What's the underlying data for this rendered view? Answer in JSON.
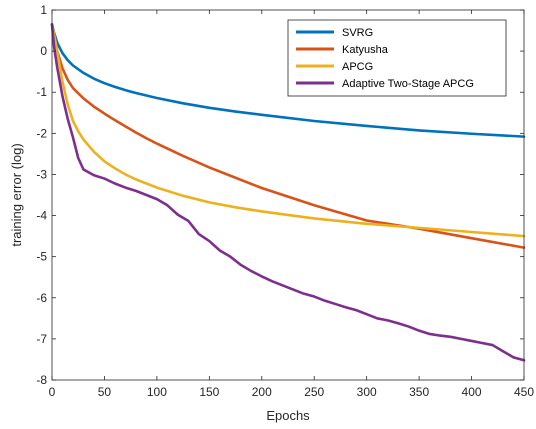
{
  "chart_data": {
    "type": "line",
    "title": "",
    "xlabel": "Epochs",
    "ylabel": "training error (log)",
    "xlim": [
      0,
      450
    ],
    "ylim": [
      -8,
      1
    ],
    "xticks": [
      0,
      50,
      100,
      150,
      200,
      250,
      300,
      350,
      400,
      450
    ],
    "yticks": [
      1,
      0,
      -1,
      -2,
      -3,
      -4,
      -5,
      -6,
      -7,
      -8
    ],
    "grid": false,
    "legend_position": "top-right",
    "series": [
      {
        "name": "SVRG",
        "color": "#0072BD",
        "x": [
          0,
          2,
          5,
          10,
          15,
          20,
          30,
          40,
          50,
          60,
          70,
          80,
          90,
          100,
          125,
          150,
          175,
          200,
          250,
          300,
          350,
          400,
          450
        ],
        "y": [
          0.65,
          0.45,
          0.2,
          -0.05,
          -0.22,
          -0.35,
          -0.53,
          -0.67,
          -0.78,
          -0.87,
          -0.95,
          -1.02,
          -1.08,
          -1.14,
          -1.27,
          -1.38,
          -1.47,
          -1.55,
          -1.7,
          -1.82,
          -1.93,
          -2.01,
          -2.08
        ]
      },
      {
        "name": "Katyusha",
        "color": "#D95319",
        "x": [
          0,
          2,
          5,
          10,
          15,
          20,
          30,
          40,
          50,
          60,
          70,
          80,
          90,
          100,
          125,
          150,
          175,
          200,
          250,
          300,
          350,
          400,
          450
        ],
        "y": [
          0.65,
          0.35,
          0.0,
          -0.42,
          -0.7,
          -0.9,
          -1.15,
          -1.35,
          -1.52,
          -1.68,
          -1.83,
          -1.98,
          -2.12,
          -2.25,
          -2.55,
          -2.83,
          -3.08,
          -3.33,
          -3.75,
          -4.12,
          -4.32,
          -4.55,
          -4.78
        ]
      },
      {
        "name": "APCG",
        "color": "#EDB120",
        "x": [
          0,
          2,
          5,
          10,
          15,
          20,
          25,
          30,
          40,
          50,
          60,
          70,
          80,
          90,
          100,
          125,
          150,
          175,
          200,
          250,
          300,
          350,
          400,
          450
        ],
        "y": [
          0.65,
          0.4,
          0.0,
          -0.75,
          -1.3,
          -1.7,
          -1.95,
          -2.15,
          -2.45,
          -2.68,
          -2.85,
          -3.0,
          -3.12,
          -3.22,
          -3.32,
          -3.52,
          -3.68,
          -3.8,
          -3.9,
          -4.07,
          -4.2,
          -4.3,
          -4.4,
          -4.5
        ]
      },
      {
        "name": "Adaptive Two-Stage APCG",
        "color": "#7E2F8E",
        "x": [
          0,
          2,
          5,
          10,
          15,
          20,
          25,
          30,
          35,
          40,
          50,
          60,
          70,
          80,
          90,
          100,
          110,
          120,
          130,
          140,
          150,
          160,
          170,
          180,
          190,
          200,
          210,
          220,
          230,
          240,
          250,
          260,
          270,
          280,
          290,
          300,
          310,
          320,
          330,
          340,
          350,
          360,
          370,
          380,
          390,
          400,
          410,
          420,
          430,
          440,
          450
        ],
        "y": [
          0.65,
          0.1,
          -0.4,
          -1.1,
          -1.65,
          -2.1,
          -2.6,
          -2.88,
          -2.95,
          -3.02,
          -3.1,
          -3.22,
          -3.32,
          -3.4,
          -3.5,
          -3.6,
          -3.75,
          -3.98,
          -4.13,
          -4.45,
          -4.62,
          -4.85,
          -5.0,
          -5.2,
          -5.35,
          -5.48,
          -5.6,
          -5.7,
          -5.8,
          -5.9,
          -5.97,
          -6.07,
          -6.15,
          -6.23,
          -6.3,
          -6.4,
          -6.5,
          -6.55,
          -6.62,
          -6.7,
          -6.8,
          -6.88,
          -6.92,
          -6.95,
          -7.0,
          -7.05,
          -7.1,
          -7.15,
          -7.3,
          -7.45,
          -7.52
        ]
      }
    ]
  }
}
